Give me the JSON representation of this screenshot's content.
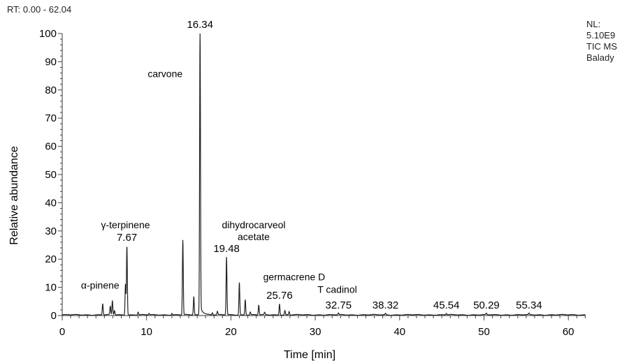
{
  "header": {
    "rt_range": "RT: 0.00 - 62.04",
    "nl_lines": [
      "NL:",
      "5.10E9",
      "TIC MS",
      "Balady"
    ]
  },
  "chart_data": {
    "type": "line",
    "title": "",
    "xlabel": "Time [min]",
    "ylabel": "Relative abundance",
    "xlim": [
      0,
      62.04
    ],
    "ylim": [
      0,
      100
    ],
    "x_ticks": [
      0,
      10,
      20,
      30,
      40,
      50,
      60
    ],
    "y_ticks": [
      0,
      10,
      20,
      30,
      40,
      50,
      60,
      70,
      80,
      90,
      100
    ],
    "grid": false,
    "line_color": "#222222",
    "peaks": [
      {
        "rt": 4.8,
        "height": 4
      },
      {
        "rt": 5.7,
        "height": 3
      },
      {
        "rt": 5.95,
        "height": 5
      },
      {
        "rt": 6.2,
        "height": 1.5
      },
      {
        "rt": 7.5,
        "height": 11
      },
      {
        "rt": 7.67,
        "height": 24.5
      },
      {
        "rt": 9.0,
        "height": 1
      },
      {
        "rt": 10.3,
        "height": 0.5
      },
      {
        "rt": 13.0,
        "height": 0.6
      },
      {
        "rt": 14.3,
        "height": 26.5
      },
      {
        "rt": 15.6,
        "height": 6.5
      },
      {
        "rt": 16.34,
        "height": 100
      },
      {
        "rt": 17.8,
        "height": 0.8
      },
      {
        "rt": 18.4,
        "height": 1.2
      },
      {
        "rt": 19.48,
        "height": 20.5
      },
      {
        "rt": 21.0,
        "height": 11.5
      },
      {
        "rt": 21.7,
        "height": 5.5
      },
      {
        "rt": 22.3,
        "height": 1
      },
      {
        "rt": 23.3,
        "height": 3.5
      },
      {
        "rt": 24.0,
        "height": 0.8
      },
      {
        "rt": 25.76,
        "height": 4
      },
      {
        "rt": 26.4,
        "height": 1.5
      },
      {
        "rt": 26.9,
        "height": 1.2
      },
      {
        "rt": 32.75,
        "height": 0.6
      },
      {
        "rt": 38.32,
        "height": 0.5
      },
      {
        "rt": 45.54,
        "height": 0.5
      },
      {
        "rt": 50.29,
        "height": 0.5
      },
      {
        "rt": 55.34,
        "height": 0.5
      }
    ],
    "rt_labels": [
      {
        "text": "16.34",
        "rt": 16.34,
        "y": 101
      },
      {
        "text": "7.67",
        "rt": 7.67,
        "y": 25.5
      },
      {
        "text": "19.48",
        "rt": 19.48,
        "y": 21.5
      },
      {
        "text": "25.76",
        "rt": 25.76,
        "y": 5
      },
      {
        "text": "32.75",
        "rt": 32.75,
        "y": 1.5
      },
      {
        "text": "38.32",
        "rt": 38.32,
        "y": 1.5
      },
      {
        "text": "45.54",
        "rt": 45.54,
        "y": 1.5
      },
      {
        "text": "50.29",
        "rt": 50.29,
        "y": 1.5
      },
      {
        "text": "55.34",
        "rt": 55.34,
        "y": 1.5
      }
    ],
    "annotations": [
      {
        "lines": [
          "carvone"
        ],
        "rt": 12.2,
        "y": 84.5
      },
      {
        "lines": [
          "γ-terpinene"
        ],
        "rt": 7.5,
        "y": 31
      },
      {
        "lines": [
          "dihydrocarveol",
          "acetate"
        ],
        "rt": 22.7,
        "y": 31
      },
      {
        "lines": [
          "germacrene D"
        ],
        "rt": 27.5,
        "y": 12.5
      },
      {
        "lines": [
          "T cadinol"
        ],
        "rt": 32.6,
        "y": 8
      },
      {
        "lines": [
          "α-pinene"
        ],
        "rt": 4.5,
        "y": 9.5
      }
    ]
  }
}
